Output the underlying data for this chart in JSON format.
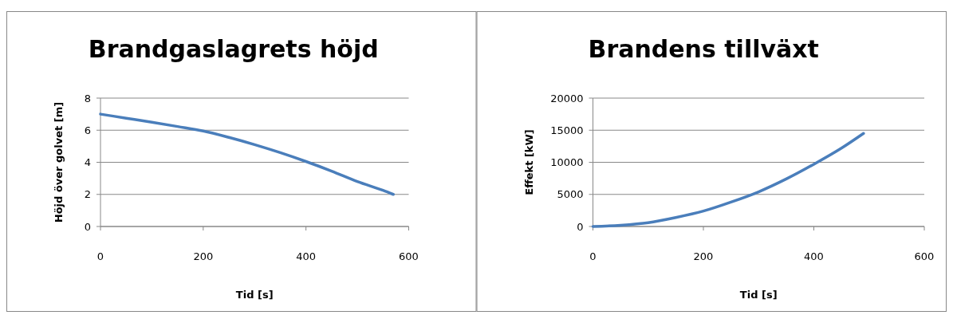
{
  "chart_data": [
    {
      "type": "line",
      "title": "Brandgaslagrets höjd",
      "xlabel": "Tid [s]",
      "ylabel": "Höjd över golvet [m]",
      "x": [
        0,
        50,
        100,
        150,
        200,
        250,
        300,
        350,
        400,
        450,
        500,
        550,
        570
      ],
      "series": [
        {
          "color": "#4a7ebb",
          "values": [
            7,
            6.75,
            6.5,
            6.23,
            5.95,
            5.55,
            5.1,
            4.6,
            4.05,
            3.45,
            2.8,
            2.25,
            2.0
          ]
        }
      ],
      "xlim": [
        0,
        600
      ],
      "xticks": [
        0,
        200,
        400,
        600
      ],
      "ylim": [
        0,
        8
      ],
      "yticks": [
        0,
        2,
        4,
        6,
        8
      ],
      "grid": "y",
      "marker": "none",
      "line_style": "solid"
    },
    {
      "type": "line",
      "title": "Brandens tillväxt",
      "xlabel": "Tid [s]",
      "ylabel": "Effekt [kW]",
      "x": [
        0,
        50,
        100,
        150,
        200,
        250,
        300,
        350,
        400,
        450,
        490
      ],
      "series": [
        {
          "color": "#4a7ebb",
          "values": [
            0,
            200,
            600,
            1400,
            2400,
            3800,
            5400,
            7400,
            9700,
            12200,
            14500
          ]
        }
      ],
      "xlim": [
        0,
        600
      ],
      "xticks": [
        0,
        200,
        400,
        600
      ],
      "ylim": [
        0,
        20000
      ],
      "yticks": [
        0,
        5000,
        10000,
        15000,
        20000
      ],
      "grid": "y",
      "marker": "none",
      "line_style": "solid"
    }
  ]
}
